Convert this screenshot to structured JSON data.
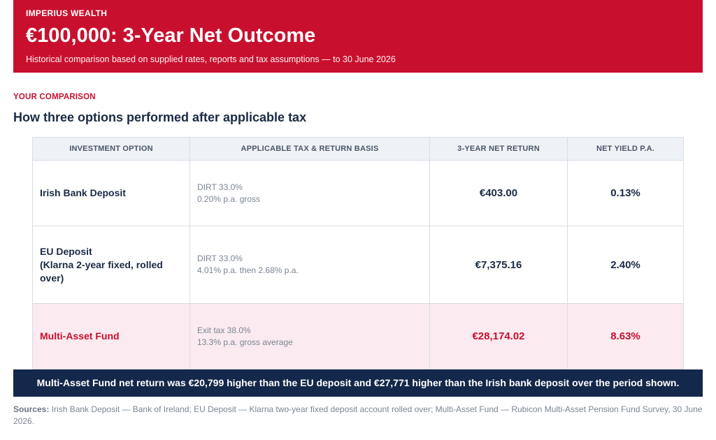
{
  "header": {
    "brand": "IMPERIUS WEALTH",
    "title": "€100,000: 3-Year Net Outcome",
    "subtitle": "Historical comparison based on supplied rates, reports and tax assumptions — to 30 June 2026",
    "color": "#c8102e"
  },
  "section": {
    "eyebrow": "YOUR COMPARISON",
    "title": "How three options performed after applicable tax"
  },
  "table": {
    "headers": [
      "INVESTMENT OPTION",
      "APPLICABLE TAX & RETURN BASIS",
      "3-YEAR NET RETURN",
      "NET YIELD P.A."
    ],
    "rows": [
      {
        "option": "Irish Bank Deposit",
        "tax": "DIRT 33.0%",
        "basis": "0.20% p.a. gross",
        "net_return": "€403.00",
        "net_yield": "0.13%"
      },
      {
        "option": "EU Deposit",
        "option_detail": "(Klarna 2-year fixed, rolled over)",
        "tax": "DIRT 33.0%",
        "basis": "4.01% p.a. then 2.68% p.a.",
        "net_return": "€7,375.16",
        "net_yield": "2.40%"
      },
      {
        "option": "Multi-Asset Fund",
        "tax": "Exit tax 38.0%",
        "basis": "13.3% p.a. gross average",
        "net_return": "€28,174.02",
        "net_yield": "8.63%",
        "highlight_color": "#fbeaef"
      }
    ]
  },
  "callout": {
    "text": "Multi-Asset Fund net return was €20,799 higher than the EU deposit and €27,771 higher than the Irish bank deposit over the period shown.",
    "color": "#13284a"
  },
  "sources": {
    "label": "Sources:",
    "text": "Irish Bank Deposit — Bank of Ireland; EU Deposit — Klarna two-year fixed deposit account rolled over; Multi-Asset Fund — Rubicon Multi-Asset Pension Fund Survey, 30 June 2026."
  }
}
